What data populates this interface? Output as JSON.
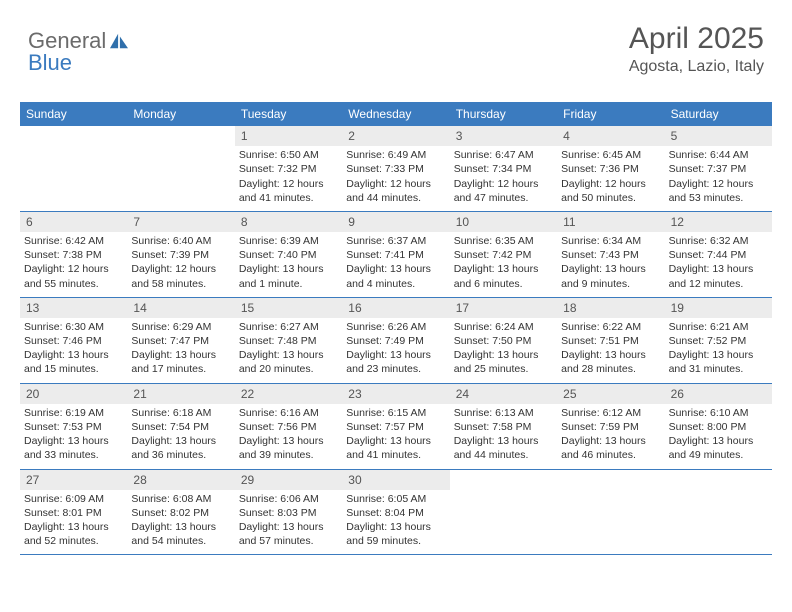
{
  "brand": {
    "part1": "General",
    "part2": "Blue"
  },
  "header": {
    "month": "April 2025",
    "location": "Agosta, Lazio, Italy"
  },
  "colors": {
    "accent": "#3b7bbf",
    "grayText": "#6b6b6b",
    "cellNumBg": "#ececec"
  },
  "dayNames": [
    "Sunday",
    "Monday",
    "Tuesday",
    "Wednesday",
    "Thursday",
    "Friday",
    "Saturday"
  ],
  "weeks": [
    [
      {
        "n": "",
        "sr": "",
        "ss": "",
        "dl": ""
      },
      {
        "n": "",
        "sr": "",
        "ss": "",
        "dl": ""
      },
      {
        "n": "1",
        "sr": "Sunrise: 6:50 AM",
        "ss": "Sunset: 7:32 PM",
        "dl": "Daylight: 12 hours and 41 minutes."
      },
      {
        "n": "2",
        "sr": "Sunrise: 6:49 AM",
        "ss": "Sunset: 7:33 PM",
        "dl": "Daylight: 12 hours and 44 minutes."
      },
      {
        "n": "3",
        "sr": "Sunrise: 6:47 AM",
        "ss": "Sunset: 7:34 PM",
        "dl": "Daylight: 12 hours and 47 minutes."
      },
      {
        "n": "4",
        "sr": "Sunrise: 6:45 AM",
        "ss": "Sunset: 7:36 PM",
        "dl": "Daylight: 12 hours and 50 minutes."
      },
      {
        "n": "5",
        "sr": "Sunrise: 6:44 AM",
        "ss": "Sunset: 7:37 PM",
        "dl": "Daylight: 12 hours and 53 minutes."
      }
    ],
    [
      {
        "n": "6",
        "sr": "Sunrise: 6:42 AM",
        "ss": "Sunset: 7:38 PM",
        "dl": "Daylight: 12 hours and 55 minutes."
      },
      {
        "n": "7",
        "sr": "Sunrise: 6:40 AM",
        "ss": "Sunset: 7:39 PM",
        "dl": "Daylight: 12 hours and 58 minutes."
      },
      {
        "n": "8",
        "sr": "Sunrise: 6:39 AM",
        "ss": "Sunset: 7:40 PM",
        "dl": "Daylight: 13 hours and 1 minute."
      },
      {
        "n": "9",
        "sr": "Sunrise: 6:37 AM",
        "ss": "Sunset: 7:41 PM",
        "dl": "Daylight: 13 hours and 4 minutes."
      },
      {
        "n": "10",
        "sr": "Sunrise: 6:35 AM",
        "ss": "Sunset: 7:42 PM",
        "dl": "Daylight: 13 hours and 6 minutes."
      },
      {
        "n": "11",
        "sr": "Sunrise: 6:34 AM",
        "ss": "Sunset: 7:43 PM",
        "dl": "Daylight: 13 hours and 9 minutes."
      },
      {
        "n": "12",
        "sr": "Sunrise: 6:32 AM",
        "ss": "Sunset: 7:44 PM",
        "dl": "Daylight: 13 hours and 12 minutes."
      }
    ],
    [
      {
        "n": "13",
        "sr": "Sunrise: 6:30 AM",
        "ss": "Sunset: 7:46 PM",
        "dl": "Daylight: 13 hours and 15 minutes."
      },
      {
        "n": "14",
        "sr": "Sunrise: 6:29 AM",
        "ss": "Sunset: 7:47 PM",
        "dl": "Daylight: 13 hours and 17 minutes."
      },
      {
        "n": "15",
        "sr": "Sunrise: 6:27 AM",
        "ss": "Sunset: 7:48 PM",
        "dl": "Daylight: 13 hours and 20 minutes."
      },
      {
        "n": "16",
        "sr": "Sunrise: 6:26 AM",
        "ss": "Sunset: 7:49 PM",
        "dl": "Daylight: 13 hours and 23 minutes."
      },
      {
        "n": "17",
        "sr": "Sunrise: 6:24 AM",
        "ss": "Sunset: 7:50 PM",
        "dl": "Daylight: 13 hours and 25 minutes."
      },
      {
        "n": "18",
        "sr": "Sunrise: 6:22 AM",
        "ss": "Sunset: 7:51 PM",
        "dl": "Daylight: 13 hours and 28 minutes."
      },
      {
        "n": "19",
        "sr": "Sunrise: 6:21 AM",
        "ss": "Sunset: 7:52 PM",
        "dl": "Daylight: 13 hours and 31 minutes."
      }
    ],
    [
      {
        "n": "20",
        "sr": "Sunrise: 6:19 AM",
        "ss": "Sunset: 7:53 PM",
        "dl": "Daylight: 13 hours and 33 minutes."
      },
      {
        "n": "21",
        "sr": "Sunrise: 6:18 AM",
        "ss": "Sunset: 7:54 PM",
        "dl": "Daylight: 13 hours and 36 minutes."
      },
      {
        "n": "22",
        "sr": "Sunrise: 6:16 AM",
        "ss": "Sunset: 7:56 PM",
        "dl": "Daylight: 13 hours and 39 minutes."
      },
      {
        "n": "23",
        "sr": "Sunrise: 6:15 AM",
        "ss": "Sunset: 7:57 PM",
        "dl": "Daylight: 13 hours and 41 minutes."
      },
      {
        "n": "24",
        "sr": "Sunrise: 6:13 AM",
        "ss": "Sunset: 7:58 PM",
        "dl": "Daylight: 13 hours and 44 minutes."
      },
      {
        "n": "25",
        "sr": "Sunrise: 6:12 AM",
        "ss": "Sunset: 7:59 PM",
        "dl": "Daylight: 13 hours and 46 minutes."
      },
      {
        "n": "26",
        "sr": "Sunrise: 6:10 AM",
        "ss": "Sunset: 8:00 PM",
        "dl": "Daylight: 13 hours and 49 minutes."
      }
    ],
    [
      {
        "n": "27",
        "sr": "Sunrise: 6:09 AM",
        "ss": "Sunset: 8:01 PM",
        "dl": "Daylight: 13 hours and 52 minutes."
      },
      {
        "n": "28",
        "sr": "Sunrise: 6:08 AM",
        "ss": "Sunset: 8:02 PM",
        "dl": "Daylight: 13 hours and 54 minutes."
      },
      {
        "n": "29",
        "sr": "Sunrise: 6:06 AM",
        "ss": "Sunset: 8:03 PM",
        "dl": "Daylight: 13 hours and 57 minutes."
      },
      {
        "n": "30",
        "sr": "Sunrise: 6:05 AM",
        "ss": "Sunset: 8:04 PM",
        "dl": "Daylight: 13 hours and 59 minutes."
      },
      {
        "n": "",
        "sr": "",
        "ss": "",
        "dl": ""
      },
      {
        "n": "",
        "sr": "",
        "ss": "",
        "dl": ""
      },
      {
        "n": "",
        "sr": "",
        "ss": "",
        "dl": ""
      }
    ]
  ]
}
